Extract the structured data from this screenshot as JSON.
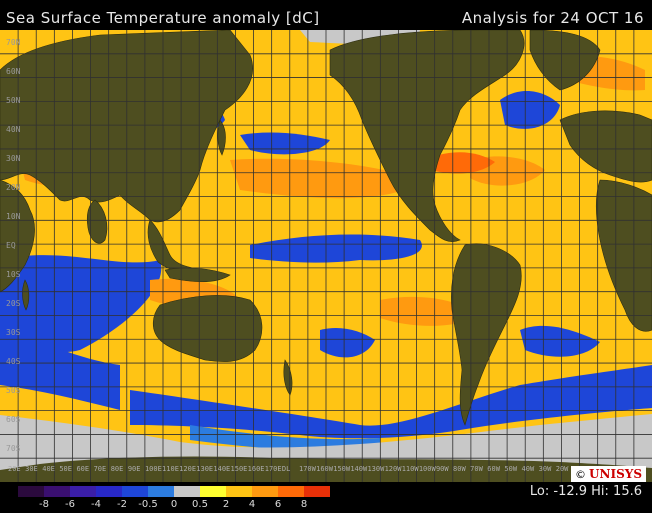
{
  "header": {
    "title": "Sea Surface Temperature anomaly [dC]",
    "analysis": "Analysis for 24 OCT 16"
  },
  "map": {
    "latitude_labels": [
      "70N",
      "60N",
      "50N",
      "40N",
      "30N",
      "20N",
      "10N",
      "EQ",
      "10S",
      "20S",
      "30S",
      "40S",
      "50S",
      "60S",
      "70S"
    ],
    "longitude_labels": [
      "20E",
      "30E",
      "40E",
      "50E",
      "60E",
      "70E",
      "80E",
      "90E",
      "100E",
      "110E",
      "120E",
      "130E",
      "140E",
      "150E",
      "160E",
      "170E",
      "DL",
      "170W",
      "160W",
      "150W",
      "140W",
      "130W",
      "120W",
      "110W",
      "100W",
      "90W",
      "80W",
      "70W",
      "60W",
      "50W",
      "40W",
      "30W",
      "20W",
      "10W"
    ],
    "colors": {
      "ocean_base": "#ffc414",
      "land": "#4e4e20",
      "ice": "#c8c8c8",
      "grid": "#303030"
    }
  },
  "legend": {
    "ticks": [
      "-8",
      "-6",
      "-4",
      "-2",
      "-0.5",
      "0",
      "0.5",
      "2",
      "4",
      "6",
      "8"
    ],
    "colors": [
      "#2b0a3d",
      "#3a0f70",
      "#3b1ea8",
      "#2828c8",
      "#1e46d8",
      "#2c7ce0",
      "#c8c8c8",
      "#ffff30",
      "#ffc414",
      "#ff9a10",
      "#ff6a08",
      "#e83008"
    ]
  },
  "stats": {
    "text": "Lo: -12.9 Hi: 15.6"
  },
  "logo": {
    "copyright": "©",
    "name": "UNISYS"
  }
}
